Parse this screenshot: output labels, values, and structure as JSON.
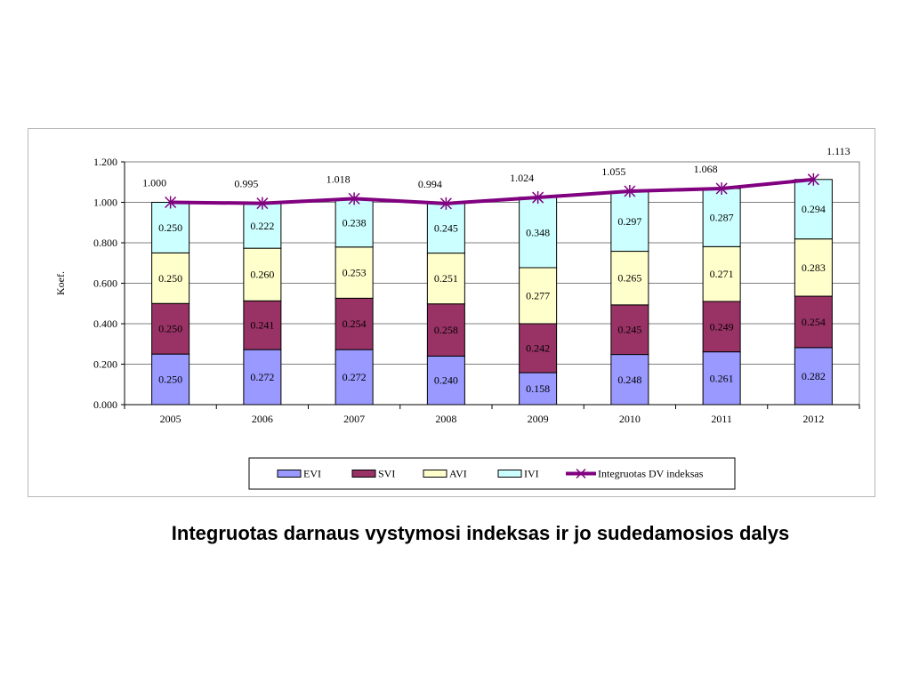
{
  "caption": "Integruotas darnaus vystymosi indeksas ir jo sudedamosios dalys",
  "chart_data": {
    "type": "bar",
    "stacked": true,
    "categories": [
      "2005",
      "2006",
      "2007",
      "2008",
      "2009",
      "2010",
      "2011",
      "2012"
    ],
    "ylabel": "Koef.",
    "ylim": [
      0,
      1.2
    ],
    "yticks": [
      "0.000",
      "0.200",
      "0.400",
      "0.600",
      "0.800",
      "1.000",
      "1.200"
    ],
    "grid": true,
    "legend_position": "bottom",
    "series": [
      {
        "name": "EVI",
        "color": "#9999ff",
        "values": [
          0.25,
          0.272,
          0.272,
          0.24,
          0.158,
          0.248,
          0.261,
          0.282
        ],
        "labels": [
          "0.250",
          "0.272",
          "0.272",
          "0.240",
          "0.158",
          "0.248",
          "0.261",
          "0.282"
        ]
      },
      {
        "name": "SVI",
        "color": "#993366",
        "values": [
          0.25,
          0.241,
          0.254,
          0.258,
          0.242,
          0.245,
          0.249,
          0.254
        ],
        "labels": [
          "0.250",
          "0.241",
          "0.254",
          "0.258",
          "0.242",
          "0.245",
          "0.249",
          "0.254"
        ]
      },
      {
        "name": "AVI",
        "color": "#ffffcc",
        "values": [
          0.25,
          0.26,
          0.253,
          0.251,
          0.277,
          0.265,
          0.271,
          0.283
        ],
        "labels": [
          "0.250",
          "0.260",
          "0.253",
          "0.251",
          "0.277",
          "0.265",
          "0.271",
          "0.283"
        ]
      },
      {
        "name": "IVI",
        "color": "#ccffff",
        "values": [
          0.25,
          0.222,
          0.238,
          0.245,
          0.348,
          0.297,
          0.287,
          0.294
        ],
        "labels": [
          "0.250",
          "0.222",
          "0.238",
          "0.245",
          "0.348",
          "0.297",
          "0.287",
          "0.294"
        ]
      }
    ],
    "line": {
      "name": "Integruotas DV indeksas",
      "color": "#800080",
      "values": [
        1.0,
        0.995,
        1.018,
        0.994,
        1.024,
        1.055,
        1.068,
        1.113
      ],
      "labels": [
        "1.000",
        "0.995",
        "1.018",
        "0.994",
        "1.024",
        "1.055",
        "1.068",
        "1.113"
      ]
    }
  }
}
